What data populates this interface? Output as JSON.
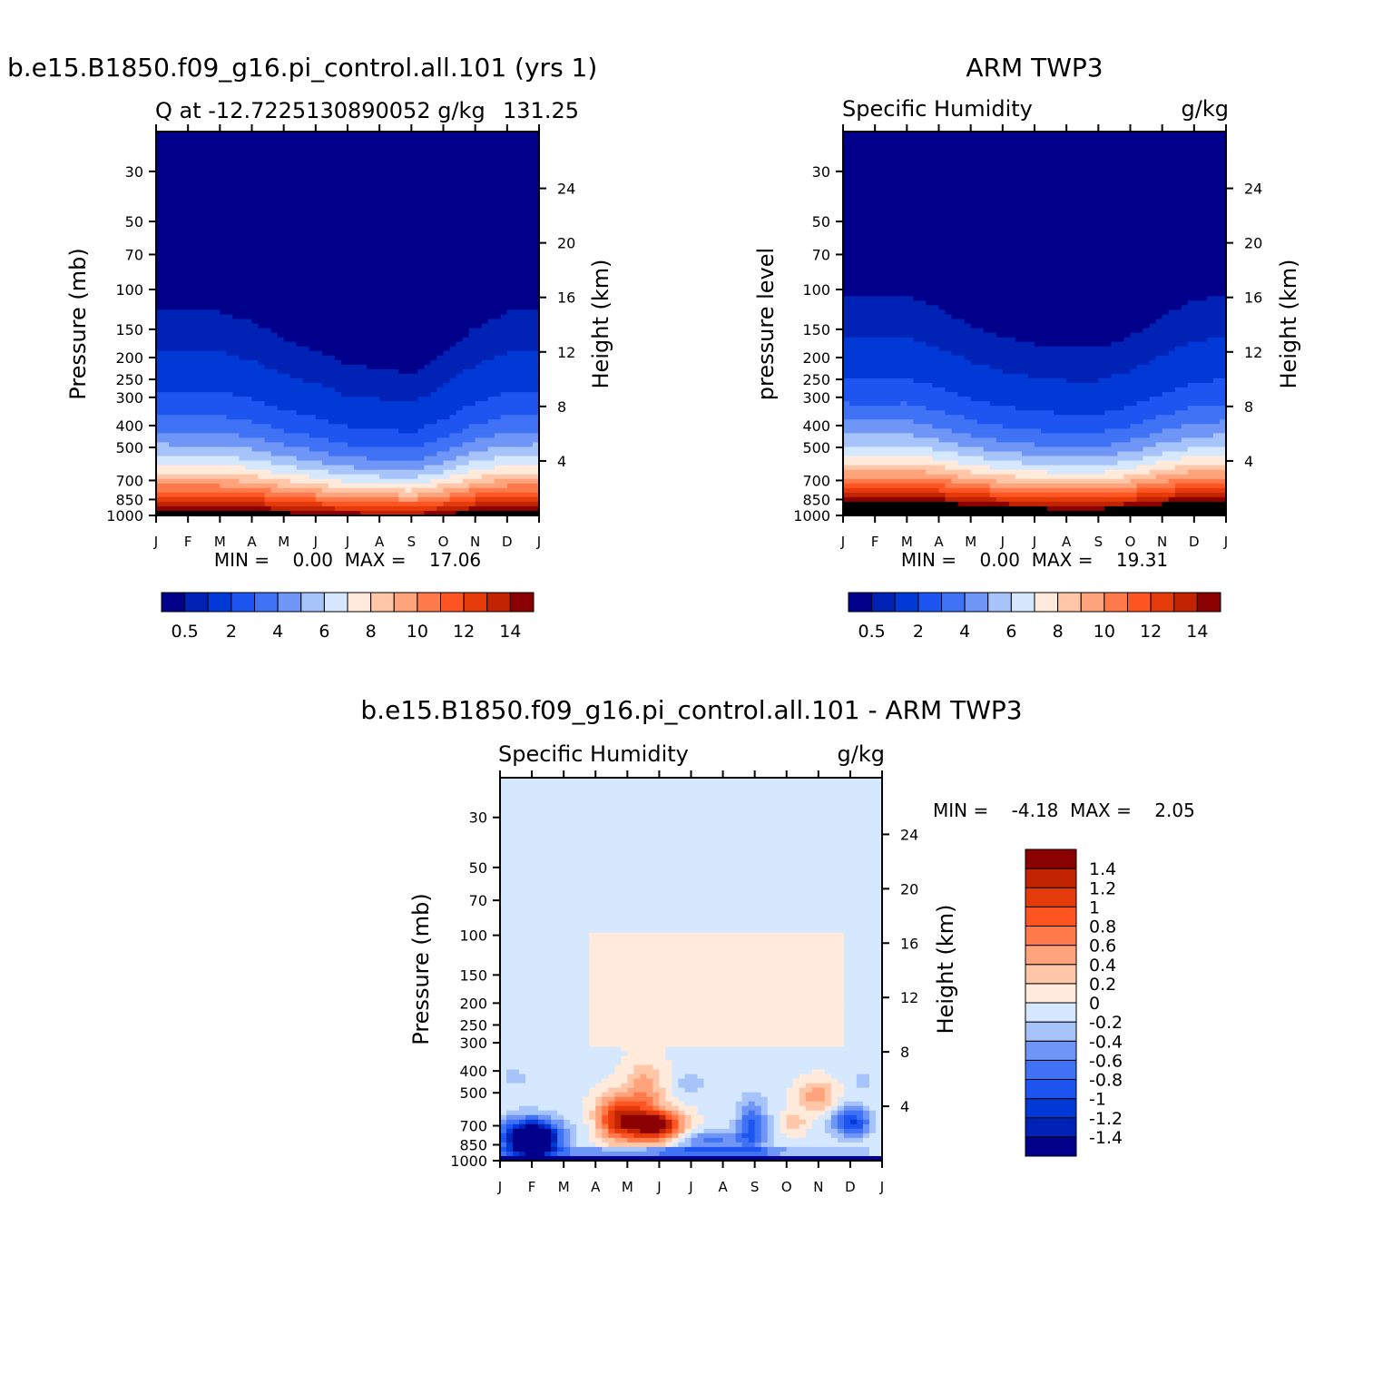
{
  "chart_data": [
    {
      "type": "heatmap",
      "title": "b.e15.B1850.f09_g16.pi_control.all.101 (yrs 1)",
      "subtitle_left": "Q at -12.7225130890052 g/kg",
      "subtitle_right": "131.25",
      "ylabel": "Pressure (mb)",
      "ylabel_right": "Height (km)",
      "x_ticks": [
        "J",
        "F",
        "M",
        "A",
        "M",
        "J",
        "J",
        "A",
        "S",
        "O",
        "N",
        "D",
        "J"
      ],
      "y_ticks": [
        "30",
        "50",
        "70",
        "100",
        "150",
        "200",
        "250",
        "300",
        "400",
        "500",
        "700",
        "850",
        "1000"
      ],
      "y_ticks_right": [
        "24",
        "20",
        "16",
        "12",
        "8",
        "4"
      ],
      "ylim": [
        1000,
        20
      ],
      "minmax_label": "MIN =    0.00  MAX =    17.06",
      "min": 0.0,
      "max": 17.06,
      "colorbar_labels": [
        "0.5",
        "2",
        "4",
        "6",
        "8",
        "10",
        "12",
        "14"
      ],
      "colorbar_levels": [
        0.5,
        1,
        2,
        3,
        4,
        5,
        6,
        7,
        8,
        9,
        10,
        11,
        12,
        13,
        14,
        15
      ],
      "colormap": [
        "#00008b",
        "#0022b5",
        "#0039d6",
        "#1e54f0",
        "#3f72f5",
        "#6f96f7",
        "#a7c4fa",
        "#d6e8fd",
        "#ffeadb",
        "#ffc7a8",
        "#ffa37c",
        "#ff7a4a",
        "#ff5522",
        "#e53a0a",
        "#c22402",
        "#8b0000"
      ],
      "seasonal_depth": [
        0.22,
        0.21,
        0.2,
        0.15,
        0.06,
        0.0,
        -0.08,
        -0.1,
        -0.13,
        -0.02,
        0.12,
        0.2,
        0.22
      ]
    },
    {
      "type": "heatmap",
      "title": "ARM TWP3",
      "subtitle_left": "Specific Humidity",
      "subtitle_right": "g/kg",
      "ylabel": "pressure level",
      "ylabel_right": "Height (km)",
      "x_ticks": [
        "J",
        "F",
        "M",
        "A",
        "M",
        "J",
        "J",
        "A",
        "S",
        "O",
        "N",
        "D",
        "J"
      ],
      "y_ticks": [
        "30",
        "50",
        "70",
        "100",
        "150",
        "200",
        "250",
        "300",
        "400",
        "500",
        "700",
        "850",
        "1000"
      ],
      "y_ticks_right": [
        "24",
        "20",
        "16",
        "12",
        "8",
        "4"
      ],
      "ylim": [
        1000,
        20
      ],
      "minmax_label": "MIN =    0.00  MAX =    19.31",
      "min": 0.0,
      "max": 19.31,
      "colorbar_labels": [
        "0.5",
        "2",
        "4",
        "6",
        "8",
        "10",
        "12",
        "14"
      ],
      "colorbar_levels": [
        0.5,
        1,
        2,
        3,
        4,
        5,
        6,
        7,
        8,
        9,
        10,
        11,
        12,
        13,
        14,
        15
      ],
      "colormap": [
        "#00008b",
        "#0022b5",
        "#0039d6",
        "#1e54f0",
        "#3f72f5",
        "#6f96f7",
        "#a7c4fa",
        "#d6e8fd",
        "#ffeadb",
        "#ffc7a8",
        "#ffa37c",
        "#ff7a4a",
        "#ff5522",
        "#e53a0a",
        "#c22402",
        "#8b0000"
      ],
      "seasonal_depth": [
        0.26,
        0.25,
        0.26,
        0.18,
        0.1,
        0.04,
        0.0,
        -0.02,
        -0.02,
        0.04,
        0.14,
        0.22,
        0.26
      ]
    },
    {
      "type": "heatmap",
      "title": "b.e15.B1850.f09_g16.pi_control.all.101 - ARM TWP3",
      "subtitle_left": "Specific Humidity",
      "subtitle_right": "g/kg",
      "ylabel": "Pressure (mb)",
      "ylabel_right": "Height (km)",
      "x_ticks": [
        "J",
        "F",
        "M",
        "A",
        "M",
        "J",
        "J",
        "A",
        "S",
        "O",
        "N",
        "D",
        "J"
      ],
      "y_ticks": [
        "30",
        "50",
        "70",
        "100",
        "150",
        "200",
        "250",
        "300",
        "400",
        "500",
        "700",
        "850",
        "1000"
      ],
      "y_ticks_right": [
        "24",
        "20",
        "16",
        "12",
        "8",
        "4"
      ],
      "ylim": [
        1000,
        20
      ],
      "minmax_label": "MIN =    -4.18  MAX =    2.05",
      "min": -4.18,
      "max": 2.05,
      "colorbar_labels": [
        "1.4",
        "1.2",
        "1",
        "0.8",
        "0.6",
        "0.4",
        "0.2",
        "0",
        "-0.2",
        "-0.4",
        "-0.6",
        "-0.8",
        "-1",
        "-1.2",
        "-1.4"
      ],
      "colorbar_levels": [
        -1.4,
        -1.2,
        -1,
        -0.8,
        -0.6,
        -0.4,
        -0.2,
        0,
        0.2,
        0.4,
        0.6,
        0.8,
        1,
        1.2,
        1.4
      ],
      "colormap": [
        "#00008b",
        "#0022b5",
        "#0039d6",
        "#1e54f0",
        "#3f72f5",
        "#6f96f7",
        "#a7c4fa",
        "#d6e8fd",
        "#ffeadb",
        "#ffc7a8",
        "#ffa37c",
        "#ff7a4a",
        "#ff5522",
        "#e53a0a",
        "#c22402",
        "#8b0000"
      ]
    }
  ]
}
